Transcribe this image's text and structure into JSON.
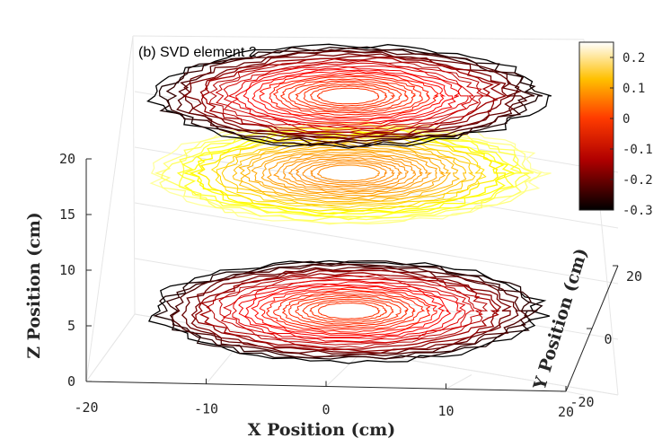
{
  "chart_data": {
    "type": "3d-contour-slices",
    "title": "(b) SVD element 2",
    "xlabel": "X Position (cm)",
    "ylabel": "Y Position (cm)",
    "zlabel": "Z Position (cm)",
    "xlim": [
      -20,
      20
    ],
    "ylim": [
      -20,
      20
    ],
    "zlim": [
      0,
      20
    ],
    "x_ticks": [
      "-20",
      "-10",
      "0",
      "10",
      "20"
    ],
    "y_ticks": [
      "-20",
      "0",
      "20"
    ],
    "z_ticks": [
      "0",
      "5",
      "10",
      "15",
      "20"
    ],
    "colormap": "hot",
    "colorbar": {
      "min": -0.3,
      "max": 0.25,
      "ticks": [
        "0.2",
        "0.1",
        "0",
        "-0.1",
        "-0.2",
        "-0.3"
      ]
    },
    "slices": [
      {
        "z": 2.5,
        "edge_value": -0.3,
        "center_value": -0.05
      },
      {
        "z": 15,
        "edge_value": 0.2,
        "center_value": 0.02
      },
      {
        "z": 22,
        "edge_value": -0.3,
        "center_value": -0.05
      }
    ]
  },
  "colors": {
    "low": "#000000",
    "mid_low": "#d40000",
    "mid": "#ff6a00",
    "high": "#ffd200",
    "top": "#ffffff"
  }
}
